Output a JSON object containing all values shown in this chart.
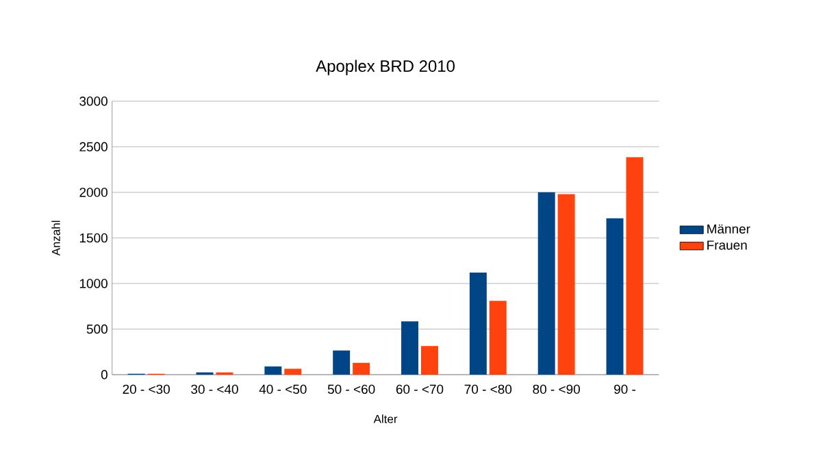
{
  "chart_data": {
    "type": "bar",
    "title": "Apoplex BRD 2010",
    "xlabel": "Alter",
    "ylabel": "Anzahl",
    "categories": [
      "20 - <30",
      "30 - <40",
      "40 - <50",
      "50 - <60",
      "60 - <70",
      "70 - <80",
      "80 - <90",
      "90 -"
    ],
    "series": [
      {
        "name": "Männer",
        "color": "#004586",
        "values": [
          10,
          25,
          90,
          265,
          585,
          1120,
          2000,
          1715
        ]
      },
      {
        "name": "Frauen",
        "color": "#ff420e",
        "values": [
          10,
          25,
          65,
          130,
          315,
          810,
          1980,
          2385
        ]
      }
    ],
    "ylim": [
      0,
      3000
    ],
    "yticks": [
      0,
      500,
      1000,
      1500,
      2000,
      2500,
      3000
    ],
    "grid": "y",
    "legend": "right"
  }
}
